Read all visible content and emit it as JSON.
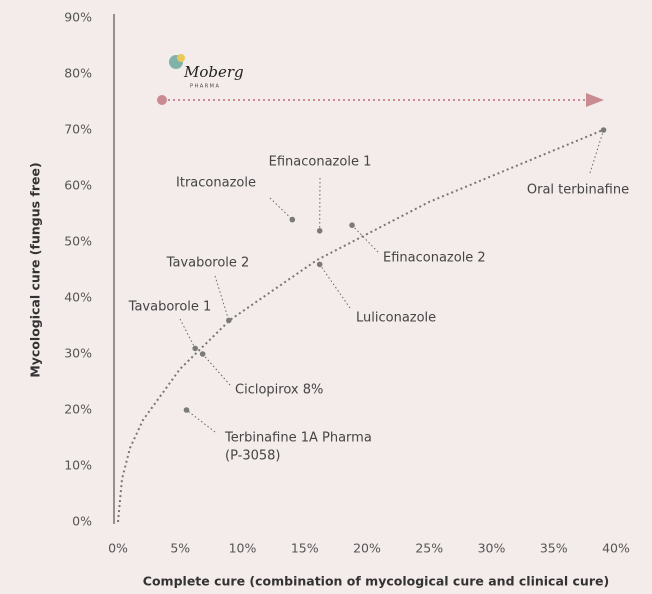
{
  "chart_data": {
    "type": "scatter",
    "logo": {
      "name": "Moberg",
      "subtitle": "PHARMA"
    },
    "xlabel": "Complete cure (combination of mycological cure and clinical cure)",
    "ylabel": "Mycological cure (fungus free)",
    "x": [
      39,
      14,
      16.2,
      18.8,
      16.2,
      8.9,
      6.2,
      6.8,
      5.5
    ],
    "values": [
      70,
      54,
      52,
      53,
      46,
      36,
      31,
      30,
      20
    ],
    "labels": [
      [
        "Oral terbinafine"
      ],
      [
        "Itraconazole"
      ],
      [
        "Efinaconazole 1"
      ],
      [
        "Efinaconazole 2"
      ],
      [
        "Luliconazole"
      ],
      [
        "Tavaborole 2"
      ],
      [
        "Tavaborole 1"
      ],
      [
        "Ciclopirox 8%"
      ],
      [
        "Terbinafine 1A Pharma",
        "(P-3058)"
      ]
    ],
    "color": "#7a7a7a",
    "xlim": [
      0,
      40
    ],
    "ylim": [
      0,
      90
    ],
    "xticks": [
      {
        "value": 0,
        "label": "0%"
      },
      {
        "value": 5,
        "label": "5%"
      },
      {
        "value": 10,
        "label": "10%"
      },
      {
        "value": 15,
        "label": "15%"
      },
      {
        "value": 20,
        "label": "20%"
      },
      {
        "value": 25,
        "label": "25%"
      },
      {
        "value": 30,
        "label": "30%"
      },
      {
        "value": 35,
        "label": "35%"
      },
      {
        "value": 40,
        "label": "40%"
      }
    ],
    "yticks": [
      {
        "value": 0,
        "label": "0%"
      },
      {
        "value": 10,
        "label": "10%"
      },
      {
        "value": 20,
        "label": "20%"
      },
      {
        "value": 30,
        "label": "30%"
      },
      {
        "value": 40,
        "label": "40%"
      },
      {
        "value": 50,
        "label": "50%"
      },
      {
        "value": 60,
        "label": "60%"
      },
      {
        "value": 70,
        "label": "70%"
      },
      {
        "value": 80,
        "label": "80%"
      },
      {
        "value": 90,
        "label": "90%"
      }
    ]
  }
}
